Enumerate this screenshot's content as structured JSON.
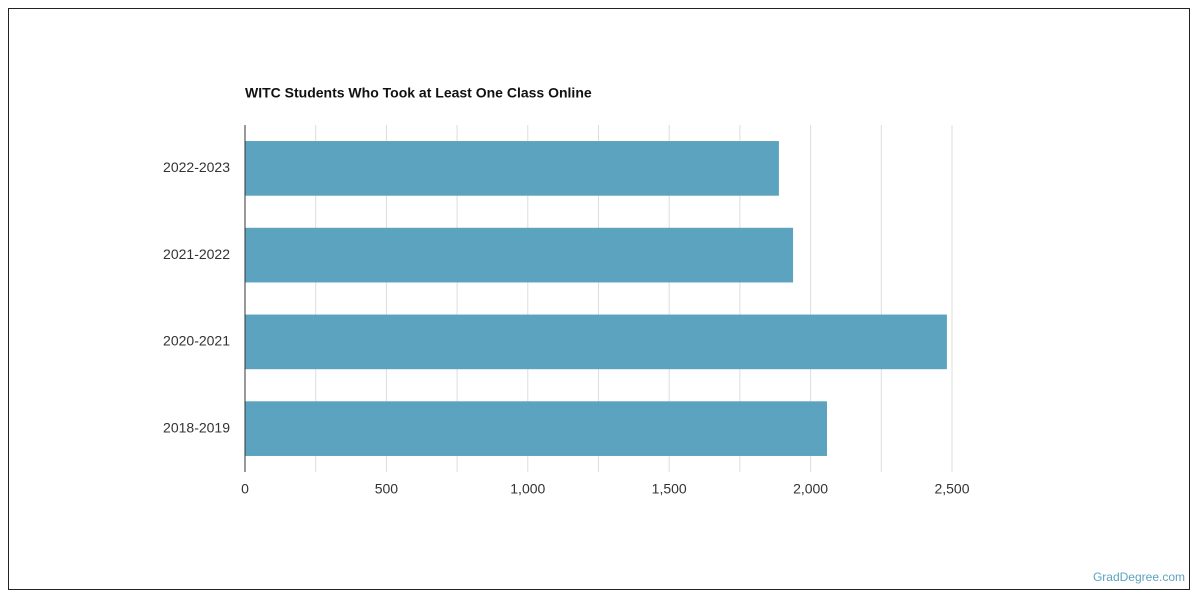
{
  "chart_data": {
    "type": "bar",
    "orientation": "horizontal",
    "title": "WITC Students Who Took at Least One Class Online",
    "categories": [
      "2022-2023",
      "2021-2022",
      "2020-2021",
      "2018-2019"
    ],
    "values": [
      1888,
      1938,
      2482,
      2058
    ],
    "color": "#5ba3bf",
    "xlim": [
      0,
      2500
    ],
    "xticks": [
      0,
      500,
      {
        "value": 1000,
        "label": "1,000"
      },
      {
        "value": 1500,
        "label": "1,500"
      },
      {
        "value": 2000,
        "label": "2,000"
      },
      {
        "value": 2500,
        "label": "2,500"
      }
    ],
    "xgrid_minor": [
      250,
      750,
      1250,
      1750,
      2250
    ],
    "grid": true,
    "source": "GradDegree.com"
  }
}
